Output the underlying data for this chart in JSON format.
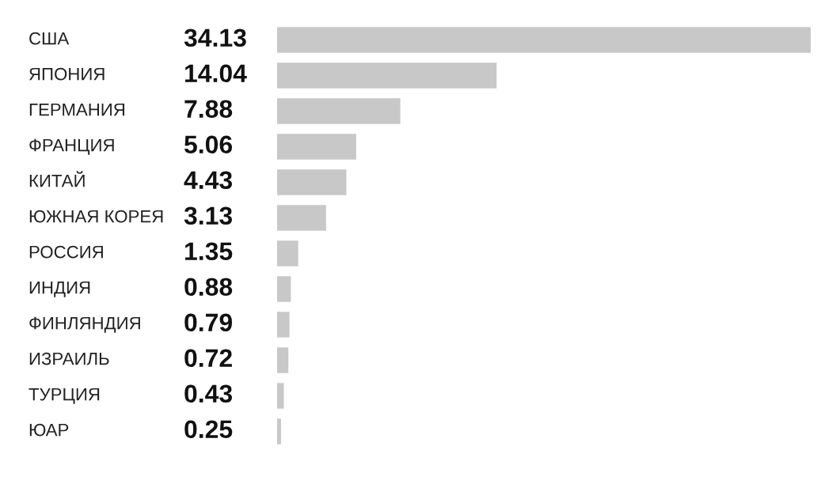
{
  "chart_data": {
    "type": "bar",
    "orientation": "horizontal",
    "data_labels": true,
    "categories": [
      "США",
      "ЯПОНИЯ",
      "ГЕРМАНИЯ",
      "ФРАНЦИЯ",
      "КИТАЙ",
      "ЮЖНАЯ КОРЕЯ",
      "РОССИЯ",
      "ИНДИЯ",
      "ФИНЛЯНДИЯ",
      "ИЗРАИЛЬ",
      "ТУРЦИЯ",
      "ЮАР"
    ],
    "values": [
      34.13,
      14.04,
      7.88,
      5.06,
      4.43,
      3.13,
      1.35,
      0.88,
      0.79,
      0.72,
      0.43,
      0.25
    ],
    "color": "#c8c8c8"
  }
}
